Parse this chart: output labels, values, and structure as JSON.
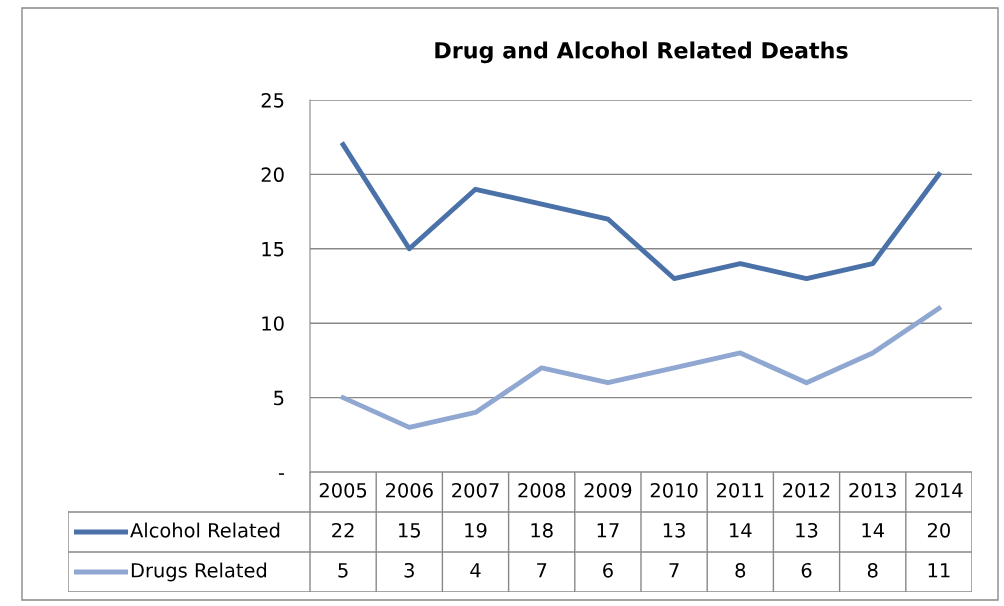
{
  "chart_data": {
    "type": "line",
    "title": "Drug and Alcohol Related Deaths",
    "categories": [
      "2005",
      "2006",
      "2007",
      "2008",
      "2009",
      "2010",
      "2011",
      "2012",
      "2013",
      "2014"
    ],
    "series": [
      {
        "name": "Alcohol Related",
        "color": "#4a72a8",
        "values": [
          22,
          15,
          19,
          18,
          17,
          13,
          14,
          13,
          14,
          20
        ]
      },
      {
        "name": "Drugs Related",
        "color": "#8fa7d1",
        "values": [
          5,
          3,
          4,
          7,
          6,
          7,
          8,
          6,
          8,
          11
        ]
      }
    ],
    "ylim": [
      0,
      25
    ],
    "yticks": [
      {
        "value": 0,
        "label": "-"
      },
      5,
      10,
      15,
      20,
      25
    ],
    "grid": "y",
    "legend": "bottom",
    "data_labels": true,
    "marker": "none",
    "line_style": "solid"
  }
}
